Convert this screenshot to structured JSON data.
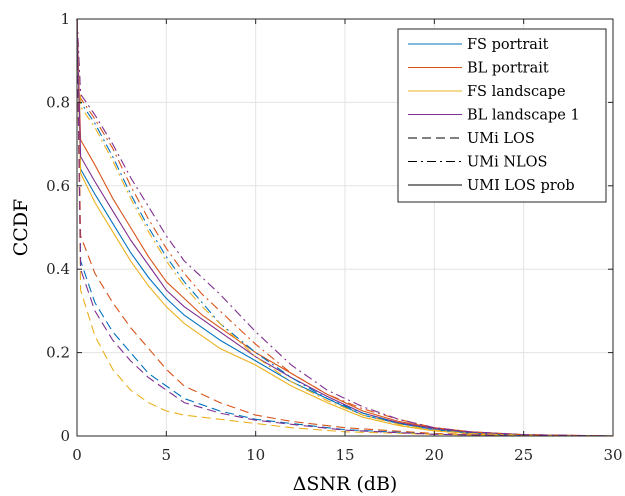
{
  "chart_data": {
    "type": "line",
    "title": "",
    "xlabel": "ΔSNR (dB)",
    "ylabel": "CCDF",
    "xlim": [
      0,
      30
    ],
    "ylim": [
      0,
      1
    ],
    "xticks": [
      0,
      5,
      10,
      15,
      20,
      25,
      30
    ],
    "yticks": [
      0,
      0.2,
      0.4,
      0.6,
      0.8,
      1
    ],
    "ytick_labels": [
      "0",
      "0.2",
      "0.4",
      "0.6",
      "0.8",
      "1"
    ],
    "grid": true,
    "legend_position": "top-right",
    "colors": {
      "fs_portrait": "#0072BD",
      "bl_portrait": "#D95319",
      "fs_landscape": "#EDB120",
      "bl_landscape": "#7E2F8E",
      "reference": "#000000"
    },
    "legend": [
      {
        "label": "FS portrait",
        "color": "#0072BD",
        "dash": "solid"
      },
      {
        "label": "BL portrait",
        "color": "#D95319",
        "dash": "solid"
      },
      {
        "label": "FS landscape",
        "color": "#EDB120",
        "dash": "solid"
      },
      {
        "label": "BL landscape 1",
        "color": "#7E2F8E",
        "dash": "solid"
      },
      {
        "label": "UMi LOS",
        "color": "#000000",
        "dash": "dashed"
      },
      {
        "label": "UMi NLOS",
        "color": "#000000",
        "dash": "dashdot"
      },
      {
        "label": "UMI LOS prob",
        "color": "#000000",
        "dash": "solid"
      }
    ],
    "series": [
      {
        "device": "FS portrait",
        "scenario": "UMi LOS prob",
        "color": "#0072BD",
        "dash": "solid",
        "x": [
          0,
          0.2,
          1,
          2,
          3,
          4,
          5,
          6,
          7,
          8,
          10,
          12,
          14,
          16,
          18,
          20,
          22,
          25,
          30
        ],
        "y": [
          1,
          0.64,
          0.58,
          0.51,
          0.44,
          0.38,
          0.33,
          0.29,
          0.26,
          0.23,
          0.18,
          0.13,
          0.09,
          0.05,
          0.03,
          0.015,
          0.008,
          0.002,
          0
        ]
      },
      {
        "device": "BL portrait",
        "scenario": "UMi LOS prob",
        "color": "#D95319",
        "dash": "solid",
        "x": [
          0,
          0.2,
          1,
          2,
          3,
          4,
          5,
          6,
          7,
          8,
          10,
          12,
          14,
          16,
          18,
          20,
          22,
          25,
          30
        ],
        "y": [
          1,
          0.71,
          0.65,
          0.57,
          0.5,
          0.43,
          0.37,
          0.33,
          0.29,
          0.26,
          0.2,
          0.15,
          0.1,
          0.06,
          0.035,
          0.02,
          0.01,
          0.003,
          0
        ]
      },
      {
        "device": "FS landscape",
        "scenario": "UMi LOS prob",
        "color": "#EDB120",
        "dash": "solid",
        "x": [
          0,
          0.2,
          1,
          2,
          3,
          4,
          5,
          6,
          7,
          8,
          10,
          12,
          14,
          16,
          18,
          20,
          22,
          25,
          30
        ],
        "y": [
          1,
          0.63,
          0.56,
          0.49,
          0.42,
          0.36,
          0.31,
          0.27,
          0.24,
          0.21,
          0.17,
          0.12,
          0.08,
          0.045,
          0.025,
          0.012,
          0.006,
          0.002,
          0
        ]
      },
      {
        "device": "BL landscape 1",
        "scenario": "UMi LOS prob",
        "color": "#7E2F8E",
        "dash": "solid",
        "x": [
          0,
          0.2,
          1,
          2,
          3,
          4,
          5,
          6,
          7,
          8,
          10,
          12,
          14,
          16,
          18,
          20,
          22,
          25,
          30
        ],
        "y": [
          1,
          0.67,
          0.61,
          0.54,
          0.47,
          0.41,
          0.35,
          0.31,
          0.28,
          0.25,
          0.19,
          0.14,
          0.095,
          0.055,
          0.032,
          0.018,
          0.009,
          0.003,
          0
        ]
      },
      {
        "device": "FS portrait",
        "scenario": "UMi LOS",
        "color": "#0072BD",
        "dash": "dashed",
        "x": [
          0,
          0.2,
          1,
          2,
          3,
          4,
          5,
          6,
          8,
          10,
          12,
          15,
          20,
          25,
          30
        ],
        "y": [
          1,
          0.42,
          0.32,
          0.25,
          0.2,
          0.15,
          0.12,
          0.09,
          0.06,
          0.04,
          0.03,
          0.015,
          0.005,
          0.001,
          0
        ]
      },
      {
        "device": "BL portrait",
        "scenario": "UMi LOS",
        "color": "#D95319",
        "dash": "dashed",
        "x": [
          0,
          0.2,
          1,
          2,
          3,
          4,
          5,
          6,
          8,
          10,
          12,
          15,
          20,
          25,
          30
        ],
        "y": [
          1,
          0.48,
          0.39,
          0.32,
          0.26,
          0.21,
          0.16,
          0.12,
          0.08,
          0.05,
          0.035,
          0.02,
          0.006,
          0.001,
          0
        ]
      },
      {
        "device": "FS landscape",
        "scenario": "UMi LOS",
        "color": "#EDB120",
        "dash": "dashed",
        "x": [
          0,
          0.2,
          1,
          2,
          3,
          4,
          5,
          6,
          8,
          10,
          12,
          15,
          20,
          25,
          30
        ],
        "y": [
          1,
          0.35,
          0.24,
          0.16,
          0.11,
          0.08,
          0.06,
          0.05,
          0.04,
          0.03,
          0.02,
          0.01,
          0.004,
          0.001,
          0
        ]
      },
      {
        "device": "BL landscape 1",
        "scenario": "UMi LOS",
        "color": "#7E2F8E",
        "dash": "dashed",
        "x": [
          0,
          0.2,
          1,
          2,
          3,
          4,
          5,
          6,
          8,
          10,
          12,
          15,
          20,
          25,
          30
        ],
        "y": [
          1,
          0.4,
          0.3,
          0.23,
          0.18,
          0.14,
          0.11,
          0.08,
          0.055,
          0.038,
          0.028,
          0.014,
          0.004,
          0.001,
          0
        ]
      },
      {
        "device": "FS portrait",
        "scenario": "UMi NLOS",
        "color": "#0072BD",
        "dash": "dashdot",
        "x": [
          0,
          0.2,
          1,
          2,
          3,
          4,
          5,
          6,
          7,
          8,
          10,
          12,
          14,
          16,
          18,
          20,
          22,
          25,
          30
        ],
        "y": [
          1,
          0.8,
          0.75,
          0.67,
          0.58,
          0.5,
          0.43,
          0.37,
          0.32,
          0.27,
          0.2,
          0.14,
          0.09,
          0.055,
          0.03,
          0.015,
          0.007,
          0.002,
          0
        ]
      },
      {
        "device": "BL portrait",
        "scenario": "UMi NLOS",
        "color": "#D95319",
        "dash": "dashdot",
        "x": [
          0,
          0.2,
          1,
          2,
          3,
          4,
          5,
          6,
          7,
          8,
          10,
          12,
          14,
          16,
          18,
          20,
          22,
          25,
          30
        ],
        "y": [
          1,
          0.81,
          0.76,
          0.69,
          0.6,
          0.52,
          0.45,
          0.39,
          0.34,
          0.3,
          0.22,
          0.15,
          0.1,
          0.065,
          0.04,
          0.02,
          0.01,
          0.003,
          0
        ]
      },
      {
        "device": "FS landscape",
        "scenario": "UMi NLOS",
        "color": "#EDB120",
        "dash": "dashdot",
        "x": [
          0,
          0.2,
          1,
          2,
          3,
          4,
          5,
          6,
          7,
          8,
          10,
          12,
          14,
          16,
          18,
          20,
          22,
          25,
          30
        ],
        "y": [
          1,
          0.79,
          0.74,
          0.66,
          0.57,
          0.49,
          0.42,
          0.36,
          0.31,
          0.27,
          0.19,
          0.13,
          0.085,
          0.05,
          0.028,
          0.014,
          0.006,
          0.002,
          0
        ]
      },
      {
        "device": "BL landscape 1",
        "scenario": "UMi NLOS",
        "color": "#7E2F8E",
        "dash": "dashdot",
        "x": [
          0,
          0.2,
          1,
          2,
          3,
          4,
          5,
          6,
          7,
          8,
          10,
          12,
          14,
          16,
          18,
          20,
          22,
          25,
          30
        ],
        "y": [
          1,
          0.82,
          0.77,
          0.7,
          0.62,
          0.55,
          0.48,
          0.42,
          0.38,
          0.34,
          0.25,
          0.17,
          0.11,
          0.07,
          0.04,
          0.02,
          0.01,
          0.003,
          0
        ]
      }
    ]
  }
}
